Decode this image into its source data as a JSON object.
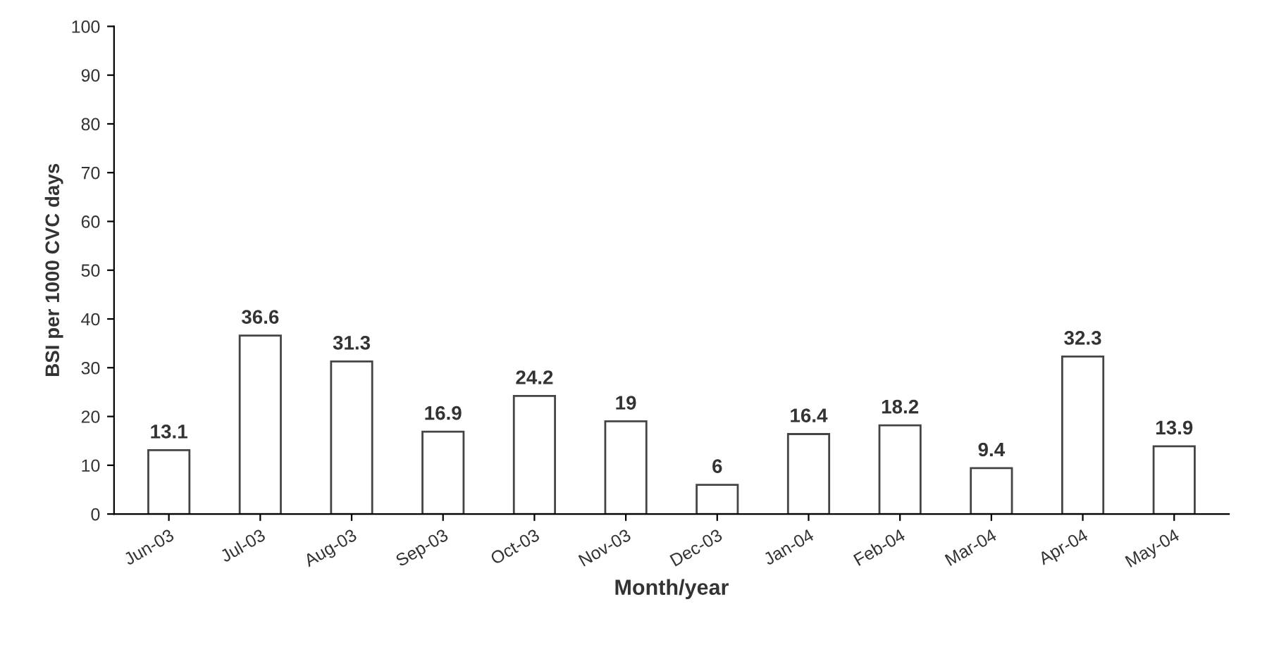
{
  "chart_data": {
    "type": "bar",
    "xlabel": "Month/year",
    "ylabel": "BSI per 1000 CVC days",
    "categories": [
      "Jun-03",
      "Jul-03",
      "Aug-03",
      "Sep-03",
      "Oct-03",
      "Nov-03",
      "Dec-03",
      "Jan-04",
      "Feb-04",
      "Mar-04",
      "Apr-04",
      "May-04"
    ],
    "values": [
      13.1,
      36.6,
      31.3,
      16.9,
      24.2,
      19,
      6,
      16.4,
      18.2,
      9.4,
      32.3,
      13.9
    ],
    "color": "#ffffff",
    "ylim": [
      0,
      100
    ],
    "yticks": [
      0,
      10,
      20,
      30,
      40,
      50,
      60,
      70,
      80,
      90,
      100
    ],
    "data_labels": true,
    "grid": false,
    "legend": false
  }
}
